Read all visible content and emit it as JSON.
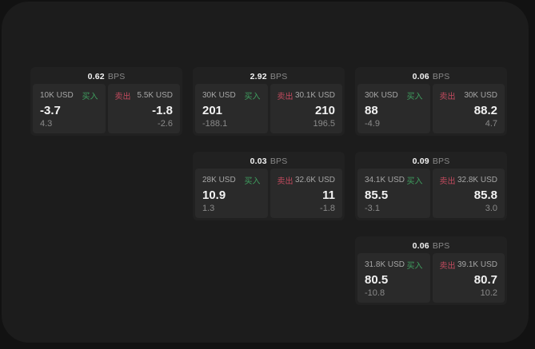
{
  "labels": {
    "buy": "买入",
    "sell": "卖出",
    "bps_unit": "BPS"
  },
  "colors": {
    "page-bg": "#121212",
    "panel-bg": "#1c1c1c",
    "card-bg": "#212121",
    "subpanel-bg": "#2a2a2a",
    "text-primary": "#f2f2f2",
    "text-secondary": "#a6a6a6",
    "text-muted": "#8a8a8a",
    "buy-green": "#3f9e5f",
    "sell-red": "#c14a5e"
  },
  "cards": [
    {
      "bps": "0.62",
      "buy": {
        "size": "10K USD",
        "price": "-3.7",
        "delta": "4.3"
      },
      "sell": {
        "size": "5.5K USD",
        "price": "-1.8",
        "delta": "-2.6"
      }
    },
    {
      "bps": "2.92",
      "buy": {
        "size": "30K USD",
        "price": "201",
        "delta": "-188.1"
      },
      "sell": {
        "size": "30.1K USD",
        "price": "210",
        "delta": "196.5"
      }
    },
    {
      "bps": "0.06",
      "buy": {
        "size": "30K USD",
        "price": "88",
        "delta": "-4.9"
      },
      "sell": {
        "size": "30K USD",
        "price": "88.2",
        "delta": "4.7"
      }
    },
    {
      "bps": "0.03",
      "buy": {
        "size": "28K USD",
        "price": "10.9",
        "delta": "1.3"
      },
      "sell": {
        "size": "32.6K USD",
        "price": "11",
        "delta": "-1.8"
      }
    },
    {
      "bps": "0.09",
      "buy": {
        "size": "34.1K USD",
        "price": "85.5",
        "delta": "-3.1"
      },
      "sell": {
        "size": "32.8K USD",
        "price": "85.8",
        "delta": "3.0"
      }
    },
    {
      "bps": "0.06",
      "buy": {
        "size": "31.8K USD",
        "price": "80.5",
        "delta": "-10.8"
      },
      "sell": {
        "size": "39.1K USD",
        "price": "80.7",
        "delta": "10.2"
      }
    }
  ]
}
